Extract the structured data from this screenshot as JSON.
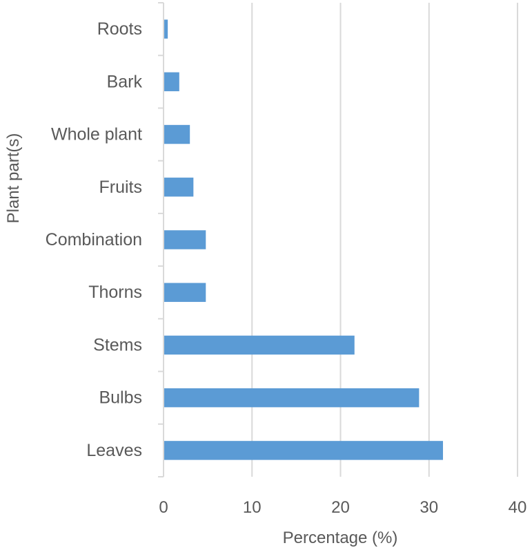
{
  "chart_data": {
    "type": "bar",
    "orientation": "horizontal",
    "title": "",
    "xlabel": "Percentage (%)",
    "ylabel": "Plant part(s)",
    "categories": [
      "Roots",
      "Bark",
      "Whole plant",
      "Fruits",
      "Combination",
      "Thorns",
      "Stems",
      "Bulbs",
      "Leaves"
    ],
    "values": [
      0.4,
      1.7,
      2.9,
      3.3,
      4.7,
      4.7,
      21.5,
      28.8,
      31.5
    ],
    "xlim": [
      0,
      40
    ],
    "xticks": [
      "0",
      "10",
      "20",
      "30",
      "40"
    ],
    "grid": "vertical",
    "colors": {
      "bar": "#5b9bd5",
      "grid": "#d9d9d9",
      "axis": "#d9d9d9",
      "text": "#595959"
    }
  }
}
